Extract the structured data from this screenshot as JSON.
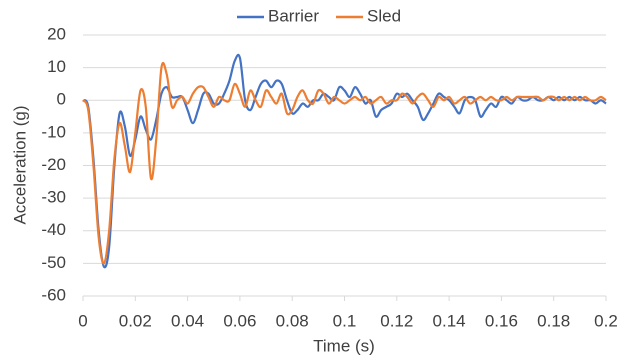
{
  "chart_data": {
    "type": "line",
    "x_label": "Time (s)",
    "y_label": "Acceleration (g)",
    "x": [
      0,
      0.002,
      0.004,
      0.006,
      0.008,
      0.01,
      0.012,
      0.014,
      0.016,
      0.018,
      0.02,
      0.022,
      0.024,
      0.026,
      0.028,
      0.03,
      0.032,
      0.034,
      0.036,
      0.038,
      0.04,
      0.042,
      0.044,
      0.046,
      0.048,
      0.05,
      0.052,
      0.054,
      0.056,
      0.058,
      0.06,
      0.062,
      0.064,
      0.066,
      0.068,
      0.07,
      0.072,
      0.074,
      0.076,
      0.078,
      0.08,
      0.082,
      0.084,
      0.086,
      0.088,
      0.09,
      0.092,
      0.094,
      0.096,
      0.098,
      0.1,
      0.102,
      0.104,
      0.106,
      0.108,
      0.11,
      0.112,
      0.114,
      0.116,
      0.118,
      0.12,
      0.122,
      0.124,
      0.126,
      0.128,
      0.13,
      0.132,
      0.134,
      0.136,
      0.138,
      0.14,
      0.142,
      0.144,
      0.146,
      0.148,
      0.15,
      0.152,
      0.154,
      0.156,
      0.158,
      0.16,
      0.162,
      0.164,
      0.166,
      0.168,
      0.17,
      0.172,
      0.174,
      0.176,
      0.178,
      0.18,
      0.182,
      0.184,
      0.186,
      0.188,
      0.19,
      0.192,
      0.194,
      0.196,
      0.198,
      0.2
    ],
    "series": [
      {
        "name": "Barrier",
        "color": "#4472c4",
        "values": [
          0,
          -2,
          -18,
          -40,
          -51,
          -45,
          -20,
          -4,
          -8,
          -17,
          -12,
          -5,
          -9,
          -12,
          -6,
          2,
          4,
          1,
          1,
          1,
          -3,
          -7,
          -3,
          2,
          2,
          -1,
          -1,
          2,
          6,
          12,
          13,
          0,
          -3,
          1,
          5,
          6,
          4,
          6,
          5,
          0,
          -4,
          -3,
          -1,
          -2,
          0,
          0,
          2,
          1,
          0,
          4,
          3,
          1,
          4,
          2,
          -1,
          0,
          -5,
          -3,
          -2,
          -1,
          2,
          1,
          2,
          0,
          -2,
          -6,
          -4,
          -1,
          2,
          1,
          0,
          -2,
          -4,
          0,
          1,
          0,
          -5,
          -3,
          -1,
          -2,
          1,
          0,
          -1,
          1,
          0,
          0,
          1,
          0,
          0,
          1,
          0,
          1,
          0,
          1,
          0,
          1,
          0,
          0,
          -1,
          0,
          -1
        ]
      },
      {
        "name": "Sled",
        "color": "#ed7d31",
        "values": [
          0,
          -3,
          -20,
          -42,
          -50,
          -40,
          -18,
          -7,
          -14,
          -22,
          -10,
          3,
          -2,
          -24,
          -12,
          10,
          8,
          -2,
          0,
          1,
          -1,
          2,
          4,
          4,
          1,
          -2,
          1,
          0,
          0,
          5,
          2,
          -2,
          3,
          0,
          -2,
          3,
          1,
          -1,
          2,
          -4,
          -3,
          1,
          3,
          0,
          -1,
          3,
          2,
          -1,
          1,
          0,
          -1,
          0,
          1,
          0,
          1,
          -1,
          0,
          1,
          -1,
          0,
          0,
          2,
          1,
          -1,
          1,
          2,
          0,
          -2,
          1,
          0,
          1,
          -1,
          0,
          1,
          -1,
          0,
          1,
          0,
          1,
          0,
          0,
          1,
          0,
          1,
          1,
          1,
          1,
          1,
          0,
          1,
          1,
          0,
          1,
          0,
          1,
          0,
          1,
          0,
          0,
          1,
          0
        ]
      }
    ],
    "xlim": [
      0,
      0.2
    ],
    "xticks": [
      0,
      0.02,
      0.04,
      0.06,
      0.08,
      0.1,
      0.12,
      0.14,
      0.16,
      0.18,
      0.2
    ],
    "ylim": [
      -60,
      20
    ],
    "yticks": [
      -60,
      -50,
      -40,
      -30,
      -20,
      -10,
      0,
      10,
      20
    ],
    "grid": true,
    "legend": "top"
  }
}
